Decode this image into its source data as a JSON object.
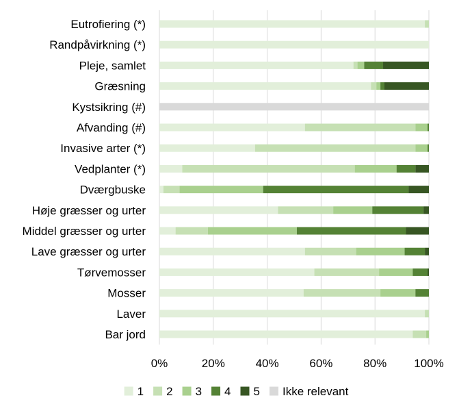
{
  "chart_data": {
    "type": "bar",
    "orientation": "horizontal",
    "stacked": true,
    "categories": [
      "Eutrofiering (*)",
      "Randpåvirkning (*)",
      "Pleje, samlet",
      "Græsning",
      "Kystsikring (#)",
      "Afvanding (#)",
      "Invasive arter (*)",
      "Vedplanter (*)",
      "Dværgbuske",
      "Høje græsser og urter",
      "Middel græsser og urter",
      "Lave græsser og urter",
      "Tørvemosser",
      "Mosser",
      "Laver",
      "Bar jord"
    ],
    "series": [
      {
        "name": "1",
        "color": "#e2efda",
        "values": [
          98.5,
          100,
          72,
          78.5,
          0,
          54,
          35.5,
          8.5,
          1.5,
          44,
          6,
          54,
          57.5,
          53.5,
          98.5,
          94
        ]
      },
      {
        "name": "2",
        "color": "#c6e0b4",
        "values": [
          1.5,
          0,
          1.5,
          2,
          0,
          41,
          59.5,
          64,
          6,
          20.5,
          12,
          19,
          24,
          28.5,
          1.5,
          5
        ]
      },
      {
        "name": "3",
        "color": "#a9d08e",
        "values": [
          0,
          0,
          2.5,
          1.5,
          0,
          4.5,
          4.5,
          15.5,
          31,
          14.5,
          33,
          18,
          12.5,
          13,
          0,
          1
        ]
      },
      {
        "name": "4",
        "color": "#548235",
        "values": [
          0,
          0,
          7,
          1.5,
          0,
          0.5,
          0.5,
          7,
          54,
          19,
          40.5,
          7.5,
          5.5,
          5,
          0,
          0
        ]
      },
      {
        "name": "5",
        "color": "#375623",
        "values": [
          0,
          0,
          17,
          16.5,
          0,
          0,
          0,
          5,
          7.5,
          2,
          8.5,
          1.5,
          0.5,
          0,
          0,
          0
        ]
      },
      {
        "name": "Ikke relevant",
        "color": "#d9d9d9",
        "values": [
          0,
          0,
          0,
          0,
          100,
          0,
          0,
          0,
          0,
          0,
          0,
          0,
          0,
          0,
          0,
          0
        ]
      }
    ],
    "xlim": [
      0,
      100
    ],
    "xticks": [
      "0%",
      "20%",
      "40%",
      "60%",
      "80%",
      "100%"
    ],
    "grid": true,
    "legend": "bottom"
  }
}
